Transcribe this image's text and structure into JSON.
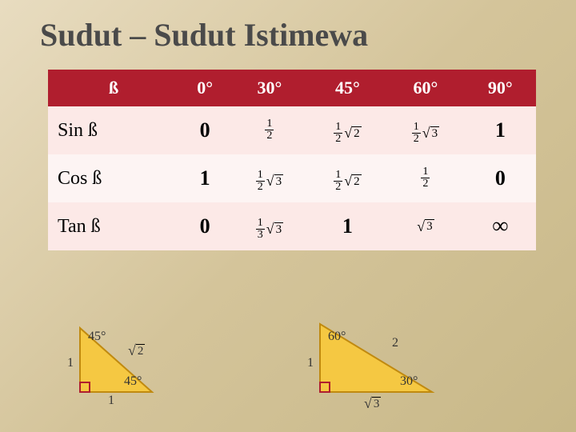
{
  "title": "Sudut – Sudut Istimewa",
  "table": {
    "header": [
      "ß",
      "0°",
      "30°",
      "45°",
      "60°",
      "90°"
    ],
    "rows": [
      {
        "label": "Sin ß",
        "cells": [
          {
            "type": "big",
            "text": "0"
          },
          {
            "type": "frac",
            "num": "1",
            "den": "2"
          },
          {
            "type": "fracsqrt",
            "num": "1",
            "den": "2",
            "sqrt": "2"
          },
          {
            "type": "fracsqrt",
            "num": "1",
            "den": "2",
            "sqrt": "3"
          },
          {
            "type": "big",
            "text": "1"
          }
        ]
      },
      {
        "label": "Cos ß",
        "cells": [
          {
            "type": "big",
            "text": "1"
          },
          {
            "type": "fracsqrt",
            "num": "1",
            "den": "2",
            "sqrt": "3"
          },
          {
            "type": "fracsqrt",
            "num": "1",
            "den": "2",
            "sqrt": "2"
          },
          {
            "type": "frac",
            "num": "1",
            "den": "2"
          },
          {
            "type": "big",
            "text": "0"
          }
        ]
      },
      {
        "label": "Tan ß",
        "cells": [
          {
            "type": "big",
            "text": "0"
          },
          {
            "type": "fracsqrt",
            "num": "1",
            "den": "3",
            "sqrt": "3"
          },
          {
            "type": "big",
            "text": "1"
          },
          {
            "type": "sqrt",
            "sqrt": "3"
          },
          {
            "type": "inf",
            "text": "∞"
          }
        ]
      }
    ],
    "header_bg": "#b01e2e",
    "header_fg": "#ffffff",
    "row_bg_alt": "#fce9e7",
    "row_bg_plain": "#fdf4f3"
  },
  "triangles": {
    "left": {
      "fill": "#f5c842",
      "stroke": "#d4a020",
      "side1": "1",
      "side2": "1",
      "hyp": "√2",
      "angle_top": "45°",
      "angle_bottom": "45°"
    },
    "right": {
      "fill": "#f5c842",
      "stroke": "#d4a020",
      "side1": "1",
      "side2": "√3",
      "hyp": "2",
      "angle_top": "60°",
      "angle_bottom": "30°"
    }
  },
  "colors": {
    "bg_grad_start": "#e8dcc0",
    "bg_grad_end": "#c8b888",
    "title_color": "#4a4a4a"
  }
}
